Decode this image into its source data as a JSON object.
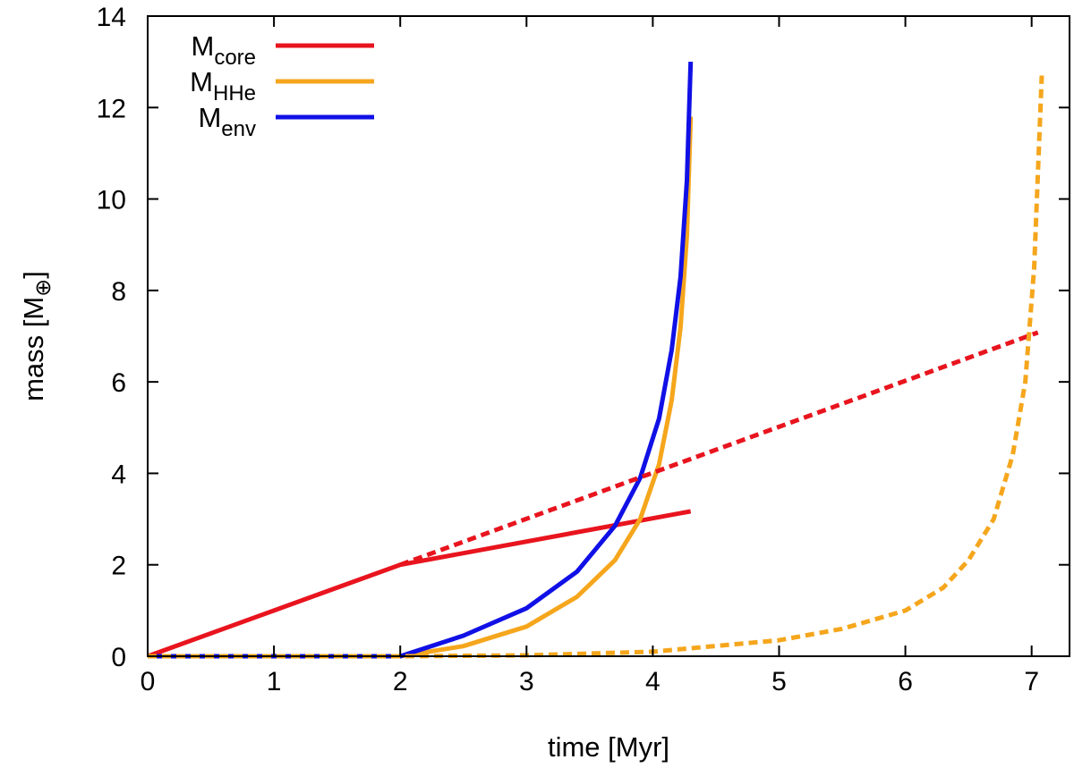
{
  "chart_data": {
    "type": "line",
    "title": "",
    "xlabel": "time [Myr]",
    "ylabel": "mass [M⊕]",
    "ylabel_main": "mass [M",
    "ylabel_sub": "⊕",
    "ylabel_close": "]",
    "xlim": [
      0,
      7.3
    ],
    "ylim": [
      0,
      14
    ],
    "xticks": [
      0,
      1,
      2,
      3,
      4,
      5,
      6,
      7
    ],
    "xtick_labels": [
      "0",
      "1",
      "2",
      "3",
      "4",
      "5",
      "6",
      "7"
    ],
    "yticks": [
      0,
      2,
      4,
      6,
      8,
      10,
      12,
      14
    ],
    "ytick_labels": [
      "0",
      "2",
      "4",
      "6",
      "8",
      "10",
      "12",
      "14"
    ],
    "grid": false,
    "legend_position": "top-left",
    "legend": [
      {
        "base": "M",
        "sub": "core",
        "color": "#e8141e"
      },
      {
        "base": "M",
        "sub": "HHe",
        "color": "#f5a61c"
      },
      {
        "base": "M",
        "sub": "env",
        "color": "#1010e6"
      }
    ],
    "series": [
      {
        "name": "M_core",
        "style": "solid",
        "color": "#e8141e",
        "x": [
          0,
          2,
          4.3
        ],
        "y": [
          0,
          2,
          3.17
        ]
      },
      {
        "name": "M_HHe",
        "style": "solid",
        "color": "#f5a61c",
        "x": [
          0,
          2,
          2.5,
          3,
          3.4,
          3.7,
          3.9,
          4.05,
          4.15,
          4.22,
          4.27,
          4.3
        ],
        "y": [
          0,
          0,
          0.22,
          0.65,
          1.3,
          2.1,
          3.0,
          4.2,
          5.6,
          7.2,
          9.2,
          11.8
        ]
      },
      {
        "name": "M_env",
        "style": "solid",
        "color": "#1010e6",
        "x": [
          0,
          2,
          2.5,
          3,
          3.4,
          3.7,
          3.9,
          4.05,
          4.15,
          4.22,
          4.27,
          4.3
        ],
        "y": [
          0,
          0,
          0.45,
          1.05,
          1.85,
          2.85,
          3.9,
          5.2,
          6.7,
          8.3,
          10.4,
          13.0
        ]
      },
      {
        "name": "M_core (dashed)",
        "style": "dashed",
        "color": "#e8141e",
        "x": [
          2,
          7.05
        ],
        "y": [
          2,
          7.08
        ]
      },
      {
        "name": "M_HHe (dashed)",
        "style": "dashed",
        "color": "#f5a61c",
        "x": [
          0,
          2,
          3,
          4,
          5,
          5.5,
          6,
          6.3,
          6.5,
          6.7,
          6.85,
          6.95,
          7.02,
          7.08
        ],
        "y": [
          0,
          0,
          0.02,
          0.1,
          0.35,
          0.6,
          1.0,
          1.5,
          2.1,
          3.0,
          4.4,
          6.0,
          8.5,
          12.7
        ]
      }
    ]
  }
}
